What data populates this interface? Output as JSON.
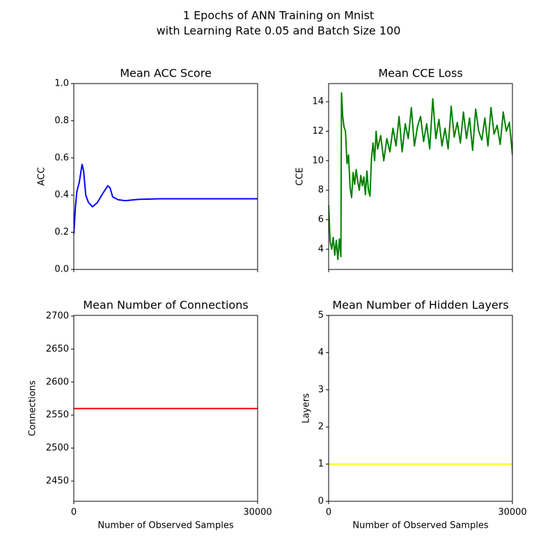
{
  "title": "1 Epochs of ANN Training on Mnist",
  "subtitle": "with Learning Rate 0.05 and Batch Size 100",
  "chart_data": [
    {
      "type": "line",
      "title": "Mean ACC Score",
      "ylabel": "ACC",
      "color": "#0000ff",
      "x": [
        0,
        250,
        500,
        900,
        1350,
        1600,
        1950,
        2400,
        3050,
        3850,
        4750,
        5550,
        5900,
        6350,
        7250,
        8400,
        10500,
        14000,
        20000,
        30000
      ],
      "values": [
        0.19,
        0.33,
        0.42,
        0.47,
        0.565,
        0.53,
        0.4,
        0.36,
        0.337,
        0.36,
        0.41,
        0.45,
        0.44,
        0.39,
        0.375,
        0.37,
        0.377,
        0.38,
        0.38,
        0.38
      ],
      "xlim": [
        0,
        30000
      ],
      "ylim": [
        0,
        1
      ],
      "yticks": [
        {
          "value": 0,
          "label": "0.0"
        },
        0.2,
        0.4,
        0.6,
        0.8,
        {
          "value": 1,
          "label": "1.0"
        }
      ]
    },
    {
      "type": "line",
      "title": "Mean CCE Loss",
      "ylabel": "CCE",
      "color": "#008000",
      "x": [
        0,
        250,
        500,
        750,
        1000,
        1250,
        1500,
        1750,
        2000,
        2100,
        2300,
        2500,
        2750,
        3000,
        3250,
        3500,
        3750,
        4000,
        4250,
        4500,
        4750,
        5000,
        5250,
        5500,
        5750,
        6000,
        6250,
        6500,
        6750,
        7000,
        7250,
        7500,
        7750,
        8000,
        8500,
        9000,
        9500,
        10000,
        10500,
        11000,
        11500,
        12000,
        12500,
        13000,
        13500,
        14000,
        14500,
        15000,
        15500,
        16000,
        16500,
        17000,
        17500,
        18000,
        18500,
        19000,
        19500,
        20000,
        20500,
        21000,
        21500,
        22000,
        22500,
        23000,
        23500,
        24000,
        24500,
        25000,
        25500,
        26000,
        26500,
        27000,
        27500,
        28000,
        28500,
        29000,
        29500,
        30000
      ],
      "values": [
        7.0,
        4.5,
        4.0,
        4.8,
        3.6,
        4.6,
        3.3,
        4.7,
        3.5,
        14.6,
        13.0,
        12.3,
        12.0,
        9.8,
        10.4,
        8.2,
        7.5,
        9.2,
        8.4,
        9.4,
        8.6,
        8.0,
        9.0,
        8.3,
        8.9,
        7.7,
        9.3,
        8.0,
        7.6,
        10.2,
        11.2,
        10.0,
        12.0,
        10.8,
        11.7,
        10.0,
        11.5,
        10.6,
        12.2,
        11.0,
        13.0,
        10.6,
        12.5,
        11.5,
        13.6,
        11.0,
        12.3,
        13.0,
        11.3,
        12.5,
        10.8,
        14.2,
        11.5,
        12.8,
        11.0,
        12.2,
        10.8,
        13.7,
        11.6,
        12.6,
        11.2,
        13.3,
        11.5,
        12.9,
        10.7,
        13.5,
        12.0,
        11.4,
        12.9,
        11.0,
        13.6,
        11.8,
        12.4,
        11.1,
        13.3,
        12.0,
        12.6,
        10.4
      ],
      "xlim": [
        0,
        30000
      ],
      "ylim": [
        2.63,
        15.23
      ],
      "yticks": [
        4,
        6,
        8,
        10,
        12,
        14
      ]
    },
    {
      "type": "line",
      "title": "Mean Number of Connections",
      "ylabel": "Connections",
      "xlabel": "Number of Observed Samples",
      "color": "#ff0000",
      "x": [
        0,
        30000
      ],
      "values": [
        2560,
        2560
      ],
      "xlim": [
        0,
        30000
      ],
      "xticks": [
        0,
        30000
      ],
      "ylim": [
        2419.4,
        2701
      ],
      "yticks": [
        2450,
        2500,
        2550,
        2600,
        2650,
        2700
      ]
    },
    {
      "type": "line",
      "title": "Mean Number of Hidden Layers",
      "ylabel": "Layers",
      "xlabel": "Number of Observed Samples",
      "color": "#ffff00",
      "x": [
        0,
        30000
      ],
      "values": [
        1,
        1
      ],
      "xlim": [
        0,
        30000
      ],
      "xticks": [
        0,
        30000
      ],
      "ylim": [
        0,
        5
      ],
      "yticks": [
        0,
        1,
        2,
        3,
        4,
        5
      ]
    }
  ]
}
